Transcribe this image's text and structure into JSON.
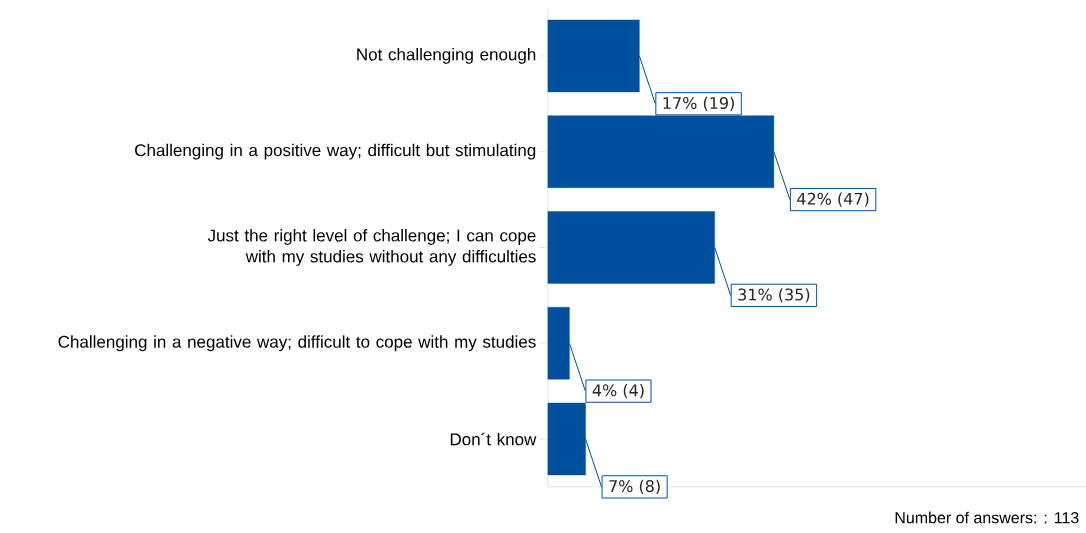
{
  "chart_data": {
    "type": "bar",
    "orientation": "horizontal",
    "categories": [
      "Not challenging enough",
      "Challenging in a positive way; difficult but stimulating",
      "Just the right level of challenge; I can cope with my studies without any difficulties",
      "Challenging in a negative way; difficult to cope with my studies",
      "Don´t know"
    ],
    "values": [
      17,
      42,
      31,
      4,
      7
    ],
    "value_labels": [
      "17% (19)",
      "42% (47)",
      "31% (35)",
      "4% (4)",
      "7% (8)"
    ],
    "color": "#00509e",
    "annotations": [
      "Number of answers: : 113"
    ]
  }
}
